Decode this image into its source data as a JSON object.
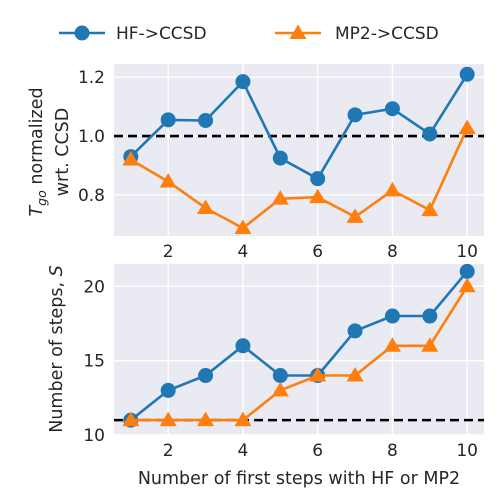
{
  "chart_data": [
    {
      "type": "line",
      "ylabel_math": "T",
      "ylabel_sub": "go",
      "ylabel_rest": " normalized",
      "ylabel_line2": "wrt. CCSD",
      "x": [
        1,
        2,
        3,
        4,
        5,
        6,
        7,
        8,
        9,
        10
      ],
      "xlim": [
        0.55,
        10.45
      ],
      "ylim": [
        0.66,
        1.245
      ],
      "xticks": [
        2,
        4,
        6,
        8,
        10
      ],
      "yticks": [
        0.8,
        1.0,
        1.2
      ],
      "ytick_labels": [
        "0.8",
        "1.0",
        "1.2"
      ],
      "reference_line": 1.0,
      "grid": true,
      "series": [
        {
          "name": "HF->CCSD",
          "marker": "circle",
          "color": "#1f77b4",
          "values": [
            0.93,
            1.055,
            1.053,
            1.185,
            0.925,
            0.855,
            1.072,
            1.093,
            1.007,
            1.21
          ]
        },
        {
          "name": "MP2->CCSD",
          "marker": "triangle",
          "color": "#ff7f0e",
          "values": [
            0.92,
            0.845,
            0.755,
            0.687,
            0.787,
            0.792,
            0.725,
            0.815,
            0.748,
            1.027
          ]
        }
      ]
    },
    {
      "type": "line",
      "ylabel_text": "Number of steps, ",
      "ylabel_math": "S",
      "xlabel": "Number of first steps with HF or MP2",
      "x": [
        1,
        2,
        3,
        4,
        5,
        6,
        7,
        8,
        9,
        10
      ],
      "xlim": [
        0.55,
        10.45
      ],
      "ylim": [
        10,
        21.5
      ],
      "xticks": [
        2,
        4,
        6,
        8,
        10
      ],
      "yticks": [
        10,
        15,
        20
      ],
      "ytick_labels": [
        "10",
        "15",
        "20"
      ],
      "reference_line": 11,
      "grid": true,
      "series": [
        {
          "name": "HF->CCSD",
          "marker": "circle",
          "color": "#1f77b4",
          "values": [
            11,
            13,
            14,
            16,
            14,
            14,
            17,
            18,
            18,
            21
          ]
        },
        {
          "name": "MP2->CCSD",
          "marker": "triangle",
          "color": "#ff7f0e",
          "values": [
            11,
            11,
            11,
            11,
            13,
            14,
            14,
            16,
            16,
            20
          ]
        }
      ]
    }
  ],
  "legend": {
    "placement": "top",
    "entries": [
      {
        "label": "HF->CCSD",
        "marker": "circle",
        "color": "#1f77b4"
      },
      {
        "label": "MP2->CCSD",
        "marker": "triangle",
        "color": "#ff7f0e"
      }
    ]
  }
}
